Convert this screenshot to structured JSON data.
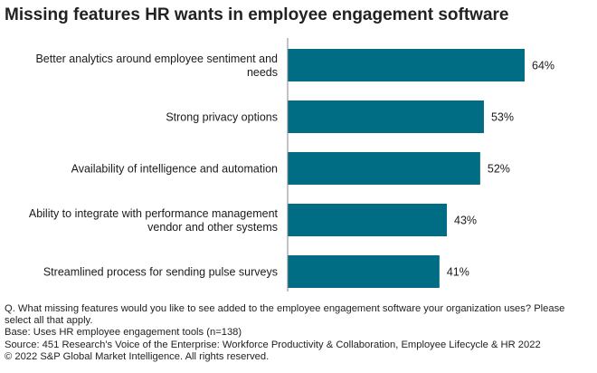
{
  "chart_data": {
    "type": "bar",
    "orientation": "horizontal",
    "title": "Missing features HR wants in employee engagement software",
    "categories": [
      [
        "Better analytics around employee sentiment and",
        "needs"
      ],
      [
        "Strong privacy options"
      ],
      [
        "Availability of intelligence and automation"
      ],
      [
        "Ability to integrate with performance management",
        "vendor and other systems"
      ],
      [
        "Streamlined process for sending pulse surveys"
      ]
    ],
    "values": [
      64,
      53,
      52,
      43,
      41
    ],
    "data_labels": [
      "64%",
      "53%",
      "52%",
      "43%",
      "41%"
    ],
    "xlim": [
      0,
      100
    ],
    "bar_color": "#006d85",
    "grid": false,
    "legend": "none"
  },
  "notes": {
    "question": "Q. What missing features would you like to see added to the employee engagement software your organization uses? Please select all that apply.",
    "base": "Base: Uses HR employee engagement tools (n=138)",
    "source": "Source: 451 Research's Voice of the Enterprise: Workforce Productivity & Collaboration, Employee Lifecycle & HR 2022",
    "copyright": "© 2022 S&P Global Market Intelligence. All rights reserved."
  }
}
